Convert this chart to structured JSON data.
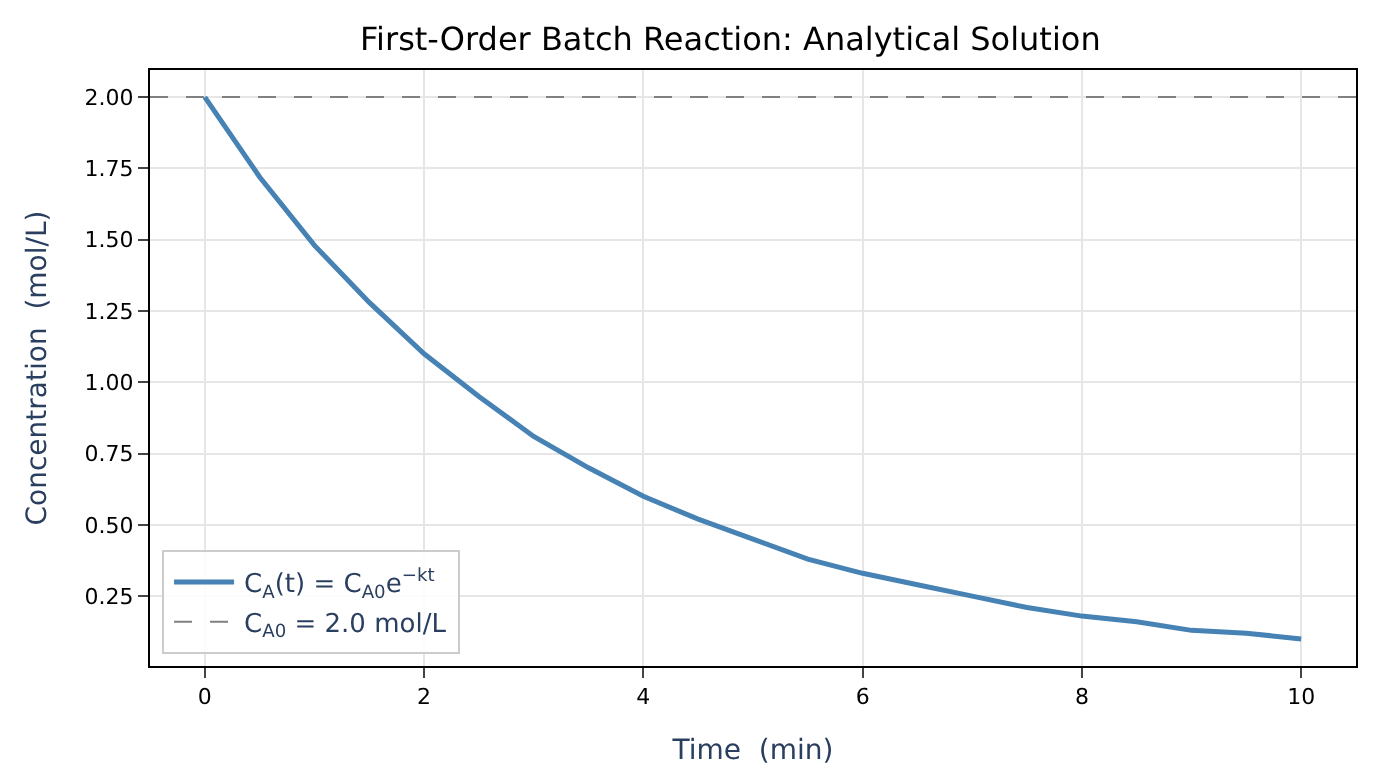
{
  "chart_data": {
    "type": "line",
    "title": "First-Order Batch Reaction: Analytical Solution",
    "xlabel": "Time  (min)",
    "ylabel": "Concentration  (mol/L)",
    "x": [
      0,
      0.5,
      1,
      1.5,
      2,
      2.5,
      3,
      3.5,
      4,
      4.5,
      5,
      5.5,
      6,
      6.5,
      7,
      7.5,
      8,
      8.5,
      9,
      9.5,
      10
    ],
    "series": [
      {
        "name": "C$_{A}$(t) = C$_{A0}$e$^{−kt}$",
        "color": "#4682b4",
        "values": [
          2.0,
          1.72,
          1.48,
          1.28,
          1.1,
          0.95,
          0.81,
          0.7,
          0.6,
          0.52,
          0.45,
          0.38,
          0.33,
          0.29,
          0.25,
          0.21,
          0.18,
          0.16,
          0.13,
          0.12,
          0.1
        ]
      }
    ],
    "ref_lines": [
      {
        "axis": "y",
        "value": 2.0,
        "label": "C$_{A0}$ = 2.0 mol/L",
        "color": "#808080",
        "line_style": "dashed"
      }
    ],
    "xlim": [
      -0.5,
      10.5
    ],
    "ylim": [
      0.005,
      2.095
    ],
    "xticks": [
      0,
      2,
      4,
      6,
      8,
      10
    ],
    "yticks": [
      {
        "value": 0.25,
        "label": "0.25"
      },
      {
        "value": 0.5,
        "label": "0.50"
      },
      {
        "value": 0.75,
        "label": "0.75"
      },
      {
        "value": 1.0,
        "label": "1.00"
      },
      {
        "value": 1.25,
        "label": "1.25"
      },
      {
        "value": 1.5,
        "label": "1.50"
      },
      {
        "value": 1.75,
        "label": "1.75"
      },
      {
        "value": 2.0,
        "label": "2.00"
      }
    ],
    "grid": true,
    "legend": "bottom left",
    "line_style": "solid",
    "marker": "none"
  }
}
